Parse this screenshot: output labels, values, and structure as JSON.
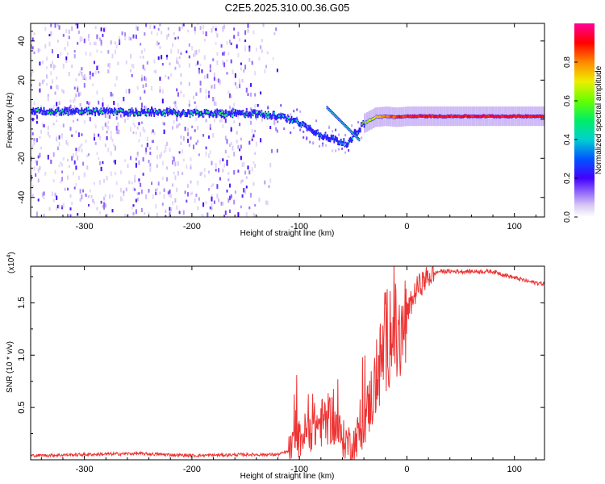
{
  "chart_data": [
    {
      "type": "heatmap",
      "title": "C2E5.2025.310.00.36.G05",
      "xlabel": "Height of straight line (km)",
      "ylabel": "Frequency (Hz)",
      "xlim": [
        -350,
        128
      ],
      "ylim": [
        -50,
        49
      ],
      "xticks": [
        -300,
        -200,
        -100,
        0,
        100
      ],
      "xtick_labels": [
        "-300",
        "-200",
        "-100",
        "0",
        "100"
      ],
      "yticks": [
        -40,
        -20,
        0,
        20,
        40
      ],
      "ytick_labels": [
        "-40",
        "-20",
        "0",
        "20",
        "40"
      ],
      "colorbar": {
        "label": "Normalized spectral amplitude",
        "range": [
          0,
          1
        ],
        "ticks": [
          0.0,
          0.2,
          0.4,
          0.6,
          0.8
        ],
        "tick_labels": [
          "0.0",
          "0.2",
          "0.4",
          "0.6",
          "0.8"
        ]
      },
      "ridge": {
        "x": [
          -350,
          -300,
          -250,
          -200,
          -150,
          -125,
          -110,
          -100,
          -90,
          -80,
          -70,
          -60,
          -55,
          -50,
          -45,
          -40,
          -30,
          -20,
          -10,
          0,
          20,
          50,
          100,
          128
        ],
        "freq": [
          4,
          4,
          3.5,
          3,
          3,
          2,
          0,
          -2,
          -5,
          -8,
          -10,
          -12,
          -13,
          -8,
          -5,
          -2,
          1,
          1.5,
          1,
          1.5,
          1.5,
          1.5,
          1.5,
          1.5
        ],
        "amp": [
          0.45,
          0.45,
          0.45,
          0.45,
          0.45,
          0.4,
          0.4,
          0.38,
          0.35,
          0.33,
          0.32,
          0.3,
          0.35,
          0.45,
          0.55,
          0.6,
          0.7,
          0.8,
          0.85,
          0.9,
          0.9,
          0.9,
          0.9,
          0.9
        ]
      }
    },
    {
      "type": "line",
      "xlabel": "Height of straight line (km)",
      "ylabel": "SNR (10 * v/v)",
      "multiplier_label": "(x10",
      "multiplier_exp": "4",
      "multiplier_close": ")",
      "xlim": [
        -350,
        128
      ],
      "ylim": [
        0,
        1.85
      ],
      "xticks": [
        -300,
        -200,
        -100,
        0,
        100
      ],
      "xtick_labels": [
        "-300",
        "-200",
        "-100",
        "0",
        "100"
      ],
      "yticks": [
        0.5,
        1.0,
        1.5
      ],
      "ytick_labels": [
        "0.5",
        "1.0",
        "1.5"
      ],
      "series": [
        {
          "name": "SNR",
          "color": "#ee3333",
          "x": [
            -350,
            -300,
            -250,
            -200,
            -150,
            -120,
            -110,
            -100,
            -90,
            -80,
            -70,
            -60,
            -50,
            -40,
            -30,
            -20,
            -15,
            -10,
            -5,
            0,
            10,
            20,
            30,
            40,
            60,
            80,
            100,
            115,
            128
          ],
          "y": [
            0.04,
            0.05,
            0.06,
            0.04,
            0.05,
            0.05,
            0.08,
            0.2,
            0.3,
            0.35,
            0.4,
            0.2,
            0.15,
            0.35,
            0.7,
            1.1,
            1.3,
            1.15,
            1.1,
            1.4,
            1.65,
            1.75,
            1.8,
            1.8,
            1.8,
            1.8,
            1.74,
            1.7,
            1.68
          ]
        }
      ]
    }
  ]
}
